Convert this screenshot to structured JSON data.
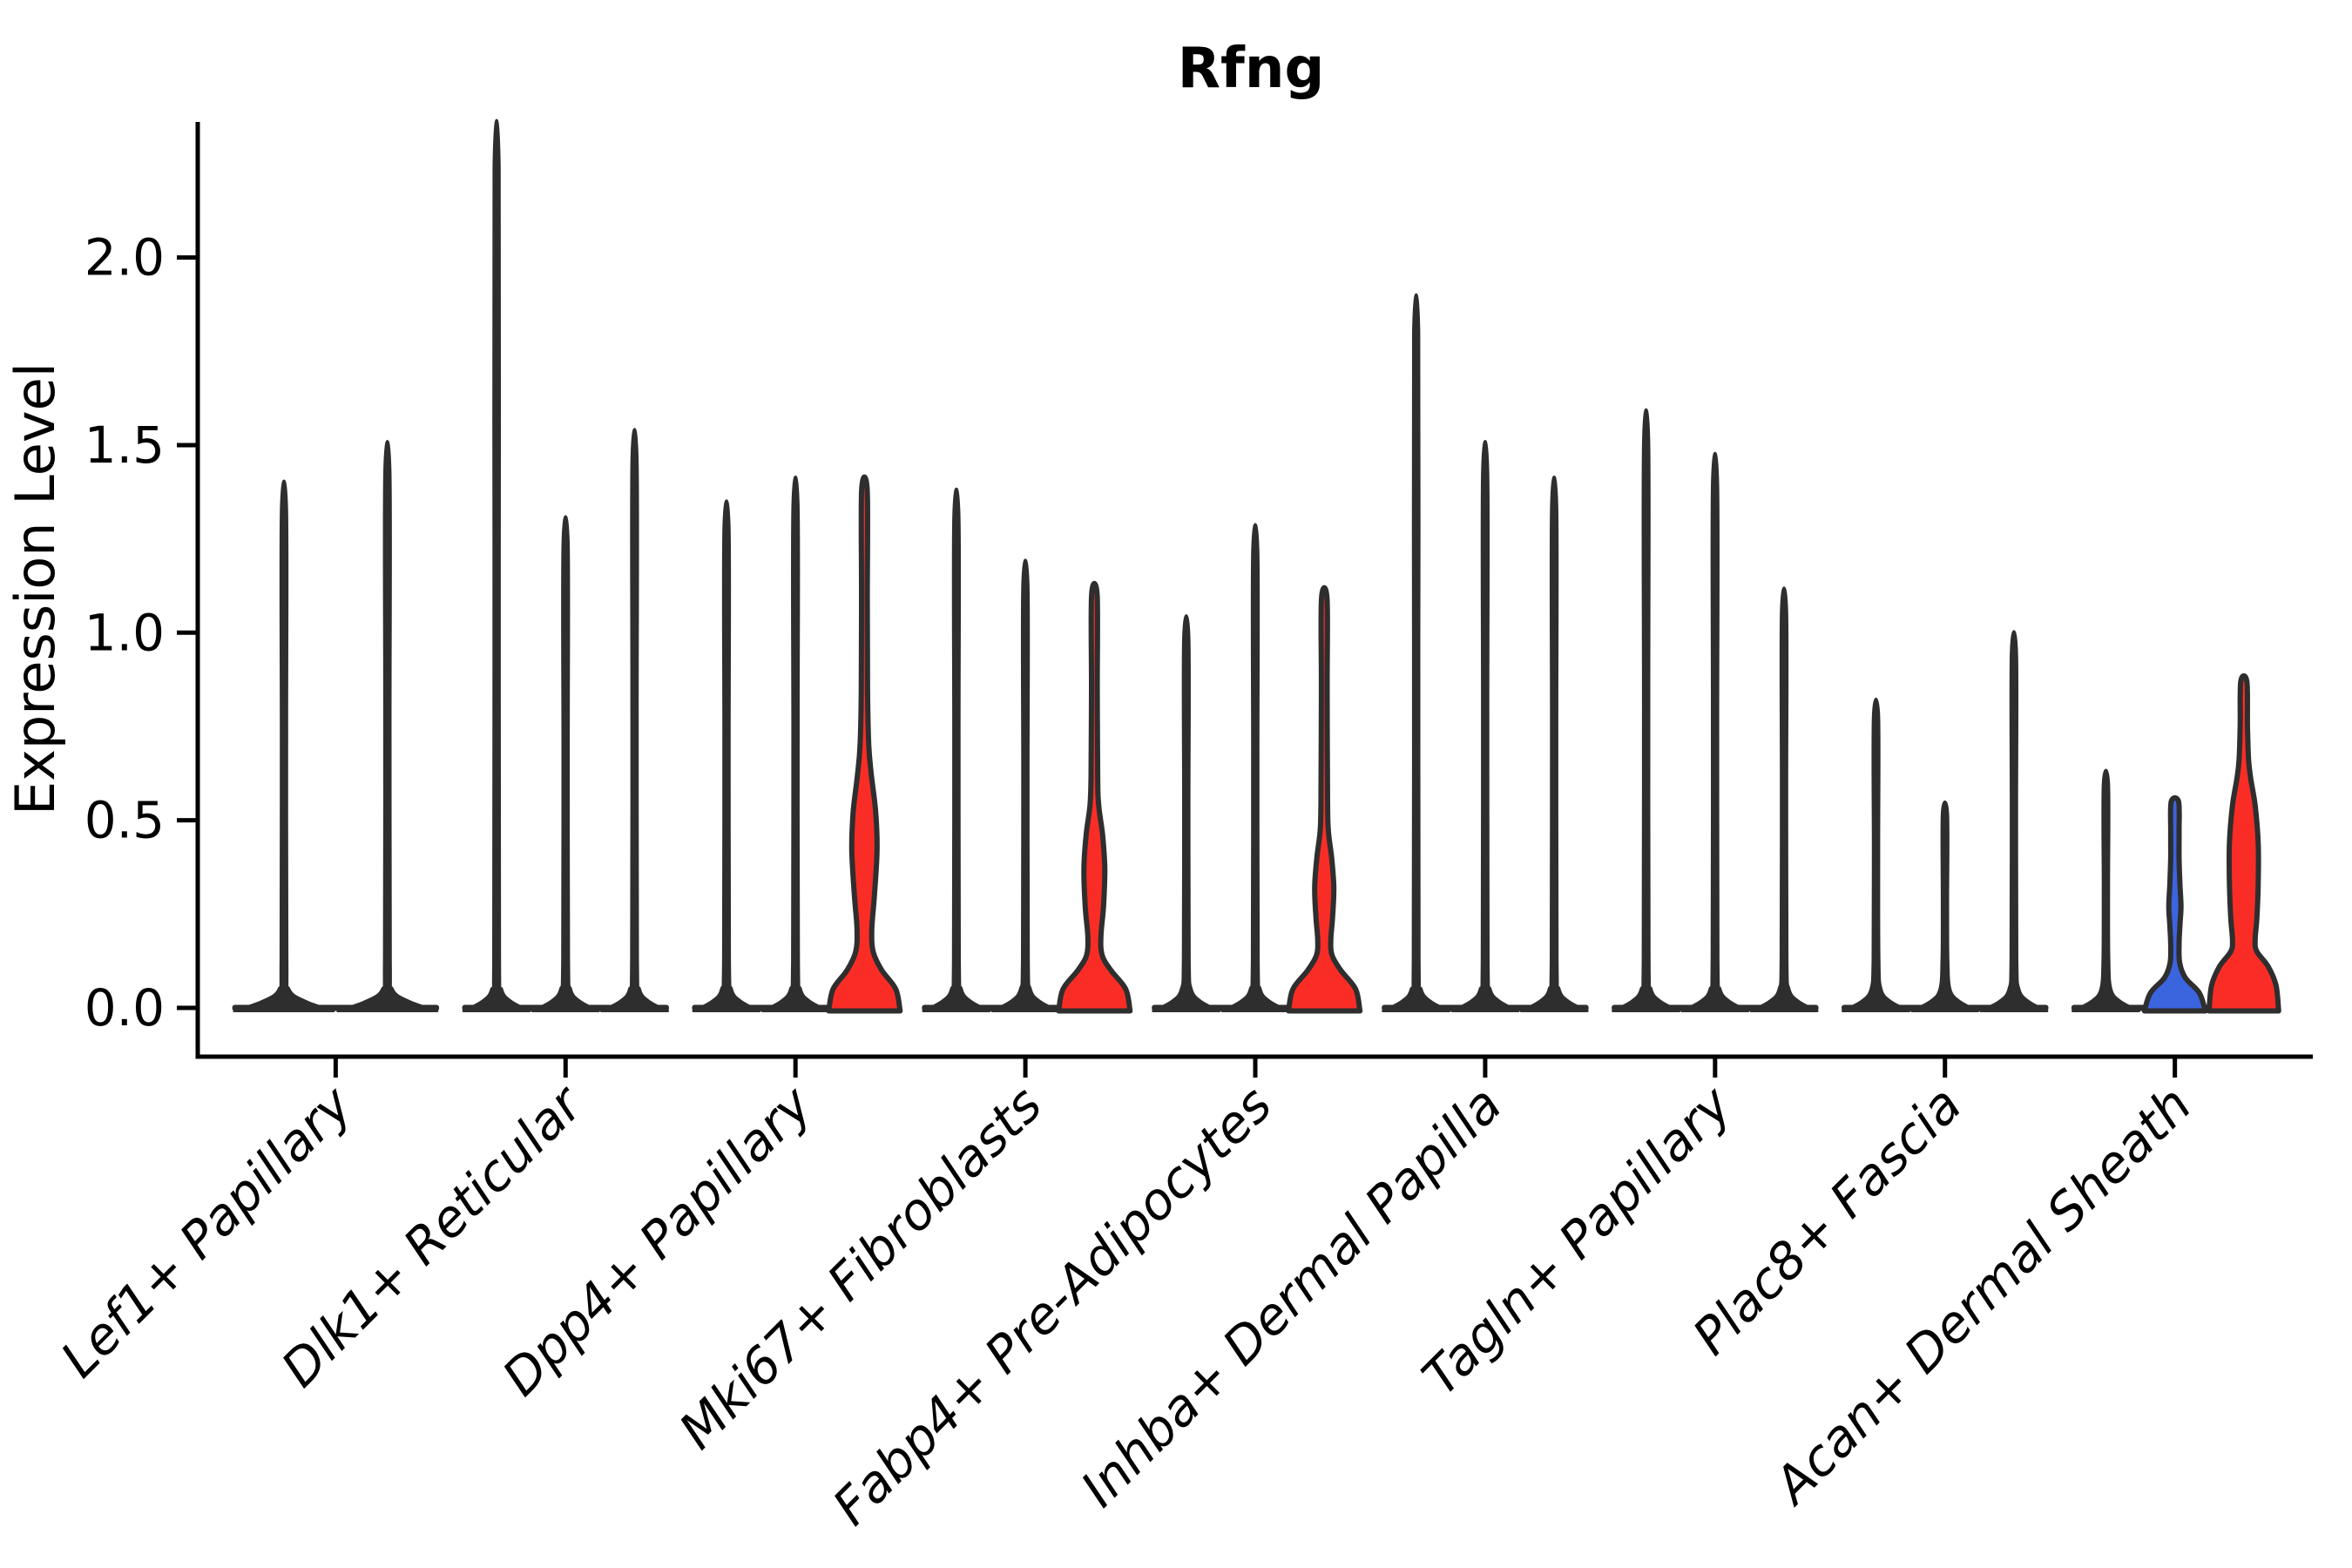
{
  "title": "Rfng",
  "colors": {
    "red": "#FA2D26",
    "blue": "#3B64DF",
    "black": "#2E2E2E",
    "axis": "#000000",
    "background": "#FFFFFF"
  },
  "chart_data": {
    "type": "violin",
    "title": "Rfng",
    "xlabel": "",
    "ylabel": "Expression Level",
    "ylim": [
      -0.12,
      2.36
    ],
    "yticks": [
      0.0,
      0.5,
      1.0,
      1.5,
      2.0
    ],
    "ytick_labels": [
      "0.0",
      "0.5",
      "1.0",
      "1.5",
      "2.0"
    ],
    "grid": false,
    "legend": "none",
    "x_label_rotation_deg": 45,
    "categories": [
      "Lef1+ Papillary",
      "Dlk1+ Reticular",
      "Dpp4+ Papillary",
      "Mki67+ Fibroblasts",
      "Fabp4+ Pre-Adipocytes",
      "Inhba+ Dermal Papilla",
      "Tagln+ Papillary",
      "Plac8+ Fascia",
      "Acan+ Dermal Sheath"
    ],
    "groups": [
      {
        "label": "Lef1+ Papillary",
        "violins": [
          {
            "max": 1.33,
            "color": "black"
          },
          {
            "max": 1.43,
            "color": "black"
          }
        ]
      },
      {
        "label": "Dlk1+ Reticular",
        "violins": [
          {
            "max": 2.24,
            "color": "black"
          },
          {
            "max": 1.24,
            "color": "black"
          },
          {
            "max": 1.46,
            "color": "black"
          }
        ]
      },
      {
        "label": "Dpp4+ Papillary",
        "violins": [
          {
            "max": 1.28,
            "color": "black"
          },
          {
            "max": 1.34,
            "color": "black"
          },
          {
            "max": 1.38,
            "color": "red",
            "profile": [
              [
                0,
                41
              ],
              [
                0.05,
                36
              ],
              [
                0.1,
                20
              ],
              [
                0.15,
                10
              ],
              [
                0.21,
                8.5
              ],
              [
                0.3,
                11.5
              ],
              [
                0.42,
                14.5
              ],
              [
                0.52,
                13
              ],
              [
                0.62,
                8
              ],
              [
                0.7,
                5
              ],
              [
                0.85,
                3.6
              ],
              [
                1.1,
                3.3
              ],
              [
                1.38,
                3.2
              ]
            ]
          }
        ]
      },
      {
        "label": "Mki67+ Fibroblasts",
        "violins": [
          {
            "max": 1.31,
            "color": "black"
          },
          {
            "max": 1.13,
            "color": "black"
          },
          {
            "max": 1.1,
            "color": "red",
            "profile": [
              [
                0,
                41
              ],
              [
                0.05,
                36
              ],
              [
                0.1,
                19
              ],
              [
                0.14,
                9
              ],
              [
                0.19,
                7.5
              ],
              [
                0.27,
                10.5
              ],
              [
                0.37,
                12
              ],
              [
                0.46,
                9.5
              ],
              [
                0.54,
                5
              ],
              [
                0.62,
                3.8
              ],
              [
                0.85,
                3.3
              ],
              [
                1.1,
                3.2
              ]
            ]
          }
        ]
      },
      {
        "label": "Fabp4+ Pre-Adipocytes",
        "violins": [
          {
            "max": 0.99,
            "color": "black"
          },
          {
            "max": 1.22,
            "color": "black"
          },
          {
            "max": 1.09,
            "color": "red",
            "profile": [
              [
                0,
                41
              ],
              [
                0.05,
                36
              ],
              [
                0.1,
                19
              ],
              [
                0.14,
                9
              ],
              [
                0.18,
                7.5
              ],
              [
                0.24,
                9.5
              ],
              [
                0.32,
                11
              ],
              [
                0.4,
                8.5
              ],
              [
                0.47,
                4.8
              ],
              [
                0.55,
                3.8
              ],
              [
                0.85,
                3.3
              ],
              [
                1.09,
                3.2
              ]
            ]
          }
        ]
      },
      {
        "label": "Inhba+ Dermal Papilla",
        "violins": [
          {
            "max": 1.8,
            "color": "black"
          },
          {
            "max": 1.43,
            "color": "black"
          },
          {
            "max": 1.34,
            "color": "black"
          }
        ]
      },
      {
        "label": "Tagln+ Papillary",
        "violins": [
          {
            "max": 1.51,
            "color": "black"
          },
          {
            "max": 1.4,
            "color": "black"
          },
          {
            "max": 1.06,
            "color": "black"
          }
        ]
      },
      {
        "label": "Plac8+ Fascia",
        "violins": [
          {
            "max": 0.78,
            "color": "black"
          },
          {
            "max": 0.52,
            "color": "black"
          },
          {
            "max": 0.95,
            "color": "black"
          }
        ]
      },
      {
        "label": "Acan+ Dermal Sheath",
        "violins": [
          {
            "max": 0.6,
            "color": "black"
          },
          {
            "max": 0.55,
            "color": "blue",
            "profile": [
              [
                0,
                35
              ],
              [
                0.04,
                28
              ],
              [
                0.08,
                12
              ],
              [
                0.12,
                5.5
              ],
              [
                0.17,
                4.8
              ],
              [
                0.22,
                5.8
              ],
              [
                0.27,
                7
              ],
              [
                0.33,
                5.8
              ],
              [
                0.4,
                4.8
              ],
              [
                0.47,
                4.8
              ],
              [
                0.55,
                4.2
              ]
            ]
          },
          {
            "max": 0.87,
            "color": "red",
            "profile": [
              [
                0,
                40
              ],
              [
                0.06,
                37
              ],
              [
                0.11,
                28
              ],
              [
                0.15,
                15
              ],
              [
                0.18,
                13
              ],
              [
                0.24,
                15
              ],
              [
                0.33,
                16.5
              ],
              [
                0.44,
                16.5
              ],
              [
                0.54,
                13
              ],
              [
                0.61,
                8
              ],
              [
                0.66,
                5.5
              ],
              [
                0.75,
                4.2
              ],
              [
                0.87,
                3.5
              ]
            ]
          }
        ]
      }
    ]
  }
}
